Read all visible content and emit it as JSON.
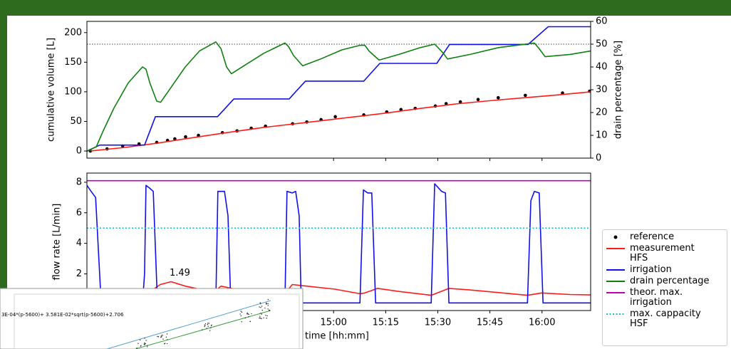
{
  "chart_data": [
    {
      "type": "line",
      "ylabel": "cumulative volume [L]",
      "y2label": "drain percentage [%]",
      "xlim": [
        829,
        974
      ],
      "ylim": [
        -12,
        219
      ],
      "yticks": [
        0,
        50,
        100,
        150,
        200
      ],
      "y2lim": [
        0,
        60
      ],
      "y2ticks": [
        0,
        10,
        20,
        30,
        40,
        50,
        60
      ],
      "hline": {
        "value": 50,
        "axis": "y2",
        "color": "#444444"
      },
      "series": [
        {
          "name": "reference",
          "color": "#000000",
          "marker": "dot",
          "x": [
            830.0,
            834.8,
            839.3,
            844.0,
            849.1,
            852.2,
            854.3,
            857.4,
            861.1,
            868.0,
            872.2,
            876.3,
            880.4,
            888.2,
            892.3,
            896.4,
            900.5,
            908.7,
            915.3,
            919.4,
            923.5,
            929.3,
            932.4,
            936.5,
            941.6,
            947.4,
            955.2,
            965.9,
            973.7
          ],
          "values": [
            0,
            3.6,
            8.4,
            12,
            14.5,
            18,
            20.5,
            24,
            26.5,
            31,
            34,
            38.5,
            42,
            46,
            49,
            53,
            58,
            61,
            66,
            70,
            72,
            76,
            80,
            83,
            87,
            90,
            94,
            98,
            101
          ]
        },
        {
          "name": "measurement HFS",
          "color": "#ff1a1a",
          "x": [
            830,
            840,
            849,
            860,
            868,
            880,
            892,
            905,
            915,
            925,
            936,
            947,
            955,
            965,
            974
          ],
          "values": [
            0,
            6,
            13,
            23,
            30,
            40,
            48,
            57,
            64,
            72,
            80,
            86,
            90,
            95,
            100
          ]
        },
        {
          "name": "irrigation",
          "color": "#1010ee",
          "x": [
            829.0,
            832.7,
            845.6,
            848.7,
            866.6,
            871.3,
            887.2,
            891.9,
            908.7,
            913.3,
            929.7,
            933.4,
            956.0,
            961.8,
            974.3
          ],
          "values": [
            0,
            10,
            10,
            58,
            58,
            88,
            88,
            118,
            118,
            148,
            148,
            180,
            180,
            210,
            210
          ]
        },
        {
          "name": "drain percentage",
          "color": "#108010",
          "axis": "y2",
          "x": [
            829.0,
            831.7,
            833.7,
            836.8,
            840.9,
            845.0,
            846.0,
            847.1,
            849.1,
            850.2,
            853.2,
            857.3,
            861.4,
            866.1,
            867.6,
            869.2,
            870.6,
            874.7,
            879.9,
            886.0,
            887.0,
            888.5,
            891.1,
            896.3,
            902.4,
            907.6,
            909.0,
            910.2,
            913.1,
            918.8,
            925.0,
            929.1,
            931.6,
            932.8,
            939.3,
            947.5,
            957.8,
            959.2,
            960.9,
            968.1,
            974.0
          ],
          "values": [
            3,
            5,
            12,
            22,
            33,
            40,
            39,
            33,
            25,
            24.5,
            31,
            40,
            47,
            51,
            48,
            40,
            37,
            41,
            46,
            50.5,
            49,
            45,
            40.5,
            43.5,
            47.5,
            49.5,
            49.5,
            47,
            43,
            45.5,
            48.5,
            50,
            46,
            43.5,
            45.5,
            48.5,
            50.5,
            48,
            44.5,
            45.5,
            47
          ]
        }
      ]
    },
    {
      "type": "line",
      "ylabel": "flow rate [L/min]",
      "xlabel": "time [hh:mm]",
      "xlim": [
        829,
        974
      ],
      "ylim": [
        -0.4,
        8.6
      ],
      "yticks": [
        2,
        4,
        6,
        8
      ],
      "xticks": [
        {
          "value": 900,
          "label": "15:00"
        },
        {
          "value": 915,
          "label": "15:15"
        },
        {
          "value": 930,
          "label": "15:30"
        },
        {
          "value": 945,
          "label": "15:45"
        },
        {
          "value": 960,
          "label": "16:00"
        }
      ],
      "annotation": {
        "text": "1.49",
        "x": 853.2,
        "y": 1.49
      },
      "series": [
        {
          "color": "#ff1a1a",
          "x": [
            829.0,
            845.0,
            850.1,
            853.2,
            857.3,
            865.5,
            867.6,
            871.7,
            886.0,
            888.1,
            892.2,
            900.4,
            907.6,
            909.0,
            912.7,
            918.8,
            928.1,
            933.2,
            939.3,
            955.8,
            959.9,
            968.1,
            974.0
          ],
          "values": [
            0.3,
            0.5,
            1.3,
            1.49,
            1.2,
            0.8,
            1.2,
            1.0,
            0.7,
            1.3,
            1.2,
            1.0,
            0.7,
            0.75,
            1.05,
            0.85,
            0.6,
            1.05,
            0.95,
            0.6,
            0.75,
            0.65,
            0.62
          ]
        },
        {
          "color": "#1010ee",
          "x": [
            829.0,
            830.2,
            831.5,
            833.1,
            845.0,
            845.6,
            846.0,
            847.1,
            848.1,
            849.3,
            866.1,
            866.7,
            868.6,
            869.6,
            870.4,
            886.0,
            886.6,
            888.1,
            889.1,
            890.1,
            890.7,
            907.6,
            908.6,
            909.8,
            911.0,
            912.1,
            928.1,
            929.1,
            931.1,
            932.2,
            933.2,
            955.8,
            956.8,
            957.8,
            959.2,
            960.3,
            974.0
          ],
          "values": [
            7.8,
            7.4,
            7.0,
            0.1,
            0.1,
            2.0,
            7.8,
            7.6,
            7.4,
            0.1,
            0.1,
            7.4,
            7.4,
            5.8,
            0.1,
            0.1,
            7.4,
            7.3,
            7.4,
            5.8,
            0.1,
            0.1,
            7.5,
            7.3,
            7.3,
            0.1,
            0.1,
            7.9,
            7.4,
            7.3,
            0.1,
            0.1,
            6.8,
            7.4,
            7.3,
            0.1,
            0.1
          ]
        },
        {
          "name": "theor. max. irrigation",
          "color": "#bf00bf",
          "x": [
            829,
            974
          ],
          "values": [
            8.1,
            8.1
          ]
        },
        {
          "name": "max. cappacity HSF",
          "color": "#17becf",
          "style": "dotted",
          "x": [
            829,
            974
          ],
          "values": [
            5.0,
            5.0
          ]
        }
      ]
    }
  ],
  "inset": {
    "formula": "3E-04*(p-5600)+ 3.581E-02*sqrt(p-5600)+2.706"
  }
}
